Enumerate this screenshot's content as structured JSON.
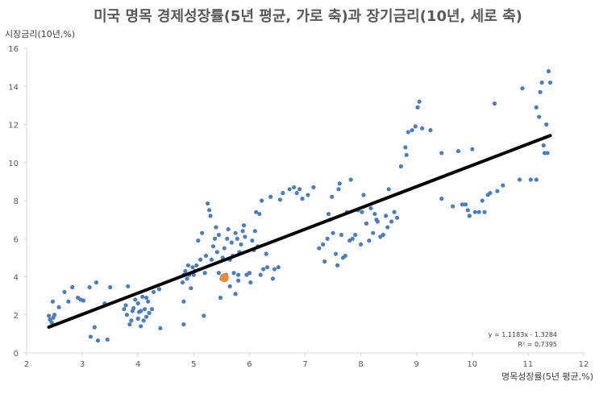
{
  "chart_data": {
    "type": "scatter",
    "title": "미국 명목 경제성장률(5년 평균, 가로 축)과 장기금리(10년, 세로 축)",
    "xlabel": "명목성장률(5년 평균,%)",
    "ylabel": "시장금리(10년,%)",
    "xlim": [
      2,
      12
    ],
    "ylim": [
      0,
      16
    ],
    "xticks": [
      "2",
      "3",
      "4",
      "5",
      "6",
      "7",
      "8",
      "9",
      "10",
      "11",
      "12"
    ],
    "yticks": [
      "0",
      "2",
      "4",
      "6",
      "8",
      "10",
      "12",
      "14",
      "16"
    ],
    "grid": false,
    "colors": {
      "points": "#4a7ebf",
      "highlight": "#f28a30",
      "trendline": "#000000",
      "axis": "#d9d9d9"
    },
    "trendline": {
      "equation": "y = 1.1183x - 1.3284",
      "r2": "R² = 0.7395",
      "slope": 1.1183,
      "intercept": -1.3284,
      "x_range": [
        2.4,
        11.4
      ]
    },
    "highlight_point": [
      5.55,
      3.95
    ],
    "points": [
      [
        2.4,
        1.95
      ],
      [
        2.42,
        1.75
      ],
      [
        2.45,
        1.6
      ],
      [
        2.48,
        1.85
      ],
      [
        2.5,
        2.0
      ],
      [
        2.47,
        2.7
      ],
      [
        2.58,
        2.4
      ],
      [
        2.68,
        3.2
      ],
      [
        2.75,
        2.7
      ],
      [
        2.82,
        3.45
      ],
      [
        2.92,
        2.9
      ],
      [
        2.97,
        2.8
      ],
      [
        3.02,
        2.75
      ],
      [
        3.13,
        3.45
      ],
      [
        3.15,
        0.85
      ],
      [
        3.22,
        1.35
      ],
      [
        3.25,
        3.7
      ],
      [
        3.28,
        0.65
      ],
      [
        3.4,
        2.6
      ],
      [
        3.45,
        0.7
      ],
      [
        3.5,
        3.45
      ],
      [
        3.75,
        2.3
      ],
      [
        3.78,
        2.5
      ],
      [
        3.8,
        2.0
      ],
      [
        3.82,
        3.5
      ],
      [
        3.85,
        1.5
      ],
      [
        3.88,
        1.7
      ],
      [
        3.9,
        2.2
      ],
      [
        3.92,
        2.35
      ],
      [
        3.95,
        2.8
      ],
      [
        4.0,
        2.6
      ],
      [
        4.0,
        1.8
      ],
      [
        4.02,
        2.15
      ],
      [
        4.05,
        2.2
      ],
      [
        4.05,
        1.4
      ],
      [
        4.08,
        2.95
      ],
      [
        4.1,
        1.7
      ],
      [
        4.12,
        2.3
      ],
      [
        4.15,
        2.9
      ],
      [
        4.15,
        1.9
      ],
      [
        4.18,
        2.7
      ],
      [
        4.2,
        2.1
      ],
      [
        4.25,
        2.3
      ],
      [
        4.28,
        3.2
      ],
      [
        4.38,
        3.35
      ],
      [
        4.4,
        1.3
      ],
      [
        4.8,
        3.7
      ],
      [
        4.82,
        4.1
      ],
      [
        4.82,
        2.7
      ],
      [
        4.82,
        1.5
      ],
      [
        4.85,
        4.3
      ],
      [
        4.88,
        3.9
      ],
      [
        4.9,
        4.6
      ],
      [
        4.92,
        4.1
      ],
      [
        4.95,
        3.4
      ],
      [
        4.98,
        4.5
      ],
      [
        5.0,
        4.1
      ],
      [
        5.02,
        4.3
      ],
      [
        5.05,
        4.6
      ],
      [
        5.08,
        5.9
      ],
      [
        5.12,
        4.9
      ],
      [
        5.15,
        6.3
      ],
      [
        5.18,
        1.95
      ],
      [
        5.2,
        4.2
      ],
      [
        5.22,
        5.1
      ],
      [
        5.25,
        7.85
      ],
      [
        5.28,
        7.5
      ],
      [
        5.3,
        7.2
      ],
      [
        5.32,
        4.9
      ],
      [
        5.35,
        5.6
      ],
      [
        5.38,
        6.0
      ],
      [
        5.4,
        6.6
      ],
      [
        5.42,
        5.3
      ],
      [
        5.45,
        4.2
      ],
      [
        5.45,
        6.2
      ],
      [
        5.48,
        2.9
      ],
      [
        5.5,
        3.9
      ],
      [
        5.52,
        5.0
      ],
      [
        5.55,
        5.5
      ],
      [
        5.58,
        4.1
      ],
      [
        5.6,
        6.0
      ],
      [
        5.62,
        6.5
      ],
      [
        5.65,
        3.5
      ],
      [
        5.65,
        4.9
      ],
      [
        5.68,
        5.8
      ],
      [
        5.7,
        5.1
      ],
      [
        5.72,
        4.2
      ],
      [
        5.75,
        3.1
      ],
      [
        5.75,
        6.3
      ],
      [
        5.78,
        6.0
      ],
      [
        5.8,
        3.8
      ],
      [
        5.8,
        4.1
      ],
      [
        5.82,
        5.3
      ],
      [
        5.85,
        5.7
      ],
      [
        5.88,
        6.4
      ],
      [
        5.9,
        6.7
      ],
      [
        5.92,
        6.1
      ],
      [
        5.95,
        4.1
      ],
      [
        6.0,
        4.2
      ],
      [
        6.02,
        3.7
      ],
      [
        6.05,
        5.9
      ],
      [
        6.08,
        5.4
      ],
      [
        6.1,
        6.4
      ],
      [
        6.12,
        7.4
      ],
      [
        6.15,
        5.6
      ],
      [
        6.18,
        7.3
      ],
      [
        6.2,
        4.1
      ],
      [
        6.22,
        8.0
      ],
      [
        6.25,
        4.4
      ],
      [
        6.3,
        5.2
      ],
      [
        6.32,
        4.5
      ],
      [
        6.38,
        8.2
      ],
      [
        6.42,
        3.9
      ],
      [
        6.45,
        4.4
      ],
      [
        6.52,
        4.5
      ],
      [
        6.55,
        8.05
      ],
      [
        6.6,
        8.4
      ],
      [
        6.72,
        8.6
      ],
      [
        6.8,
        8.7
      ],
      [
        6.85,
        8.4
      ],
      [
        6.9,
        8.6
      ],
      [
        6.95,
        8.1
      ],
      [
        7.05,
        8.3
      ],
      [
        7.15,
        8.7
      ],
      [
        7.25,
        5.5
      ],
      [
        7.32,
        5.7
      ],
      [
        7.35,
        4.8
      ],
      [
        7.4,
        6.0
      ],
      [
        7.42,
        7.3
      ],
      [
        7.45,
        7.0
      ],
      [
        7.48,
        8.2
      ],
      [
        7.5,
        6.3
      ],
      [
        7.55,
        5.2
      ],
      [
        7.58,
        4.6
      ],
      [
        7.6,
        8.6
      ],
      [
        7.62,
        8.9
      ],
      [
        7.65,
        6.2
      ],
      [
        7.68,
        5.0
      ],
      [
        7.72,
        5.1
      ],
      [
        7.75,
        7.4
      ],
      [
        7.8,
        5.9
      ],
      [
        7.82,
        9.1
      ],
      [
        7.85,
        6.0
      ],
      [
        7.9,
        6.2
      ],
      [
        7.95,
        7.5
      ],
      [
        8.0,
        5.7
      ],
      [
        8.02,
        7.4
      ],
      [
        8.05,
        8.3
      ],
      [
        8.1,
        6.8
      ],
      [
        8.15,
        5.9
      ],
      [
        8.18,
        7.6
      ],
      [
        8.22,
        6.3
      ],
      [
        8.25,
        7.3
      ],
      [
        8.28,
        7.0
      ],
      [
        8.3,
        6.9
      ],
      [
        8.35,
        6.1
      ],
      [
        8.4,
        6.2
      ],
      [
        8.45,
        7.2
      ],
      [
        8.48,
        6.6
      ],
      [
        8.5,
        8.6
      ],
      [
        8.55,
        6.9
      ],
      [
        8.6,
        7.4
      ],
      [
        8.65,
        7.1
      ],
      [
        8.72,
        9.8
      ],
      [
        8.8,
        10.8
      ],
      [
        8.82,
        10.4
      ],
      [
        8.85,
        11.6
      ],
      [
        8.92,
        11.7
      ],
      [
        8.98,
        11.9
      ],
      [
        9.02,
        12.9
      ],
      [
        9.05,
        13.2
      ],
      [
        9.1,
        11.8
      ],
      [
        9.25,
        11.7
      ],
      [
        9.45,
        10.5
      ],
      [
        9.45,
        8.1
      ],
      [
        9.65,
        7.7
      ],
      [
        9.75,
        10.6
      ],
      [
        9.82,
        7.8
      ],
      [
        9.88,
        7.8
      ],
      [
        9.92,
        7.5
      ],
      [
        9.95,
        7.2
      ],
      [
        10.0,
        10.7
      ],
      [
        10.05,
        7.4
      ],
      [
        10.12,
        7.4
      ],
      [
        10.18,
        8.0
      ],
      [
        10.22,
        7.4
      ],
      [
        10.28,
        8.3
      ],
      [
        10.32,
        8.4
      ],
      [
        10.4,
        13.1
      ],
      [
        10.45,
        8.5
      ],
      [
        10.55,
        8.8
      ],
      [
        10.85,
        9.1
      ],
      [
        10.9,
        13.9
      ],
      [
        11.05,
        9.1
      ],
      [
        11.15,
        12.9
      ],
      [
        11.2,
        12.4
      ],
      [
        11.22,
        13.7
      ],
      [
        11.25,
        14.2
      ],
      [
        11.28,
        10.9
      ],
      [
        11.3,
        10.5
      ],
      [
        11.33,
        12.0
      ],
      [
        11.37,
        14.8
      ],
      [
        11.4,
        14.2
      ],
      [
        11.35,
        10.5
      ],
      [
        11.15,
        9.1
      ]
    ]
  }
}
